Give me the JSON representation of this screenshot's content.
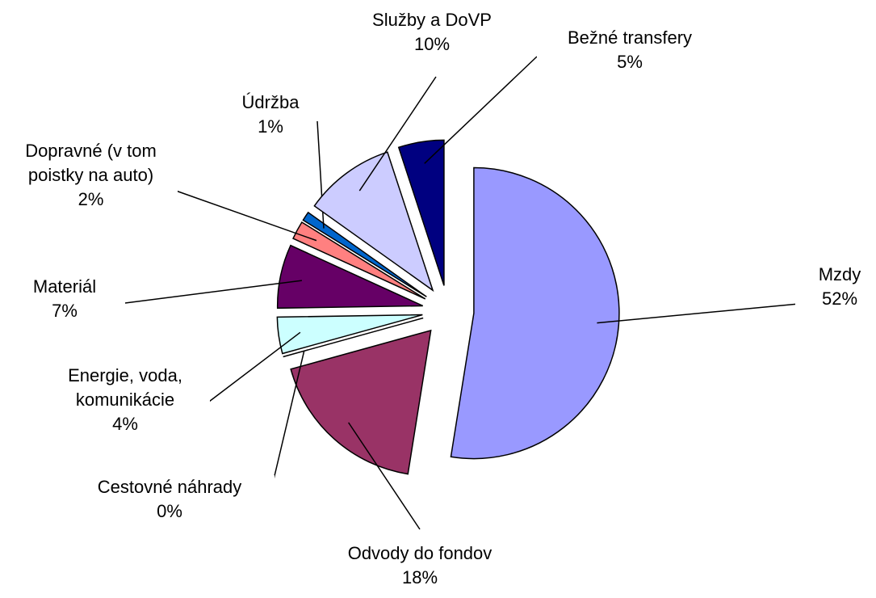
{
  "chart_data": {
    "type": "pie",
    "categories": [
      "Mzdy",
      "Odvody do fondov",
      "Cestovné náhrady",
      "Energie, voda, komunikácie",
      "Materiál",
      "Dopravné (v tom poistky na auto)",
      "Údržba",
      "Služby a DoVP",
      "Bežné transfery"
    ],
    "values": [
      52,
      18,
      0,
      4,
      7,
      2,
      1,
      10,
      5
    ],
    "value_labels": [
      "52%",
      "18%",
      "0%",
      "4%",
      "7%",
      "2%",
      "1%",
      "10%",
      "5%"
    ],
    "colors": [
      "#9999ff",
      "#993366",
      "#ffffcc",
      "#ccffff",
      "#660066",
      "#ff8080",
      "#0066cc",
      "#ccccff",
      "#000080"
    ]
  }
}
